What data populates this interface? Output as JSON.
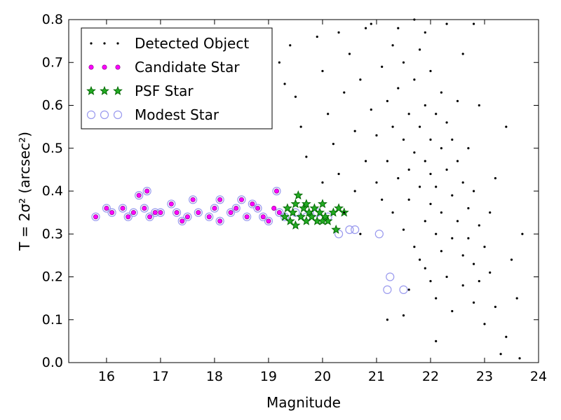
{
  "chart_data": {
    "type": "scatter",
    "title": "",
    "xlabel": "Magnitude",
    "ylabel": "T = 2σ² (arcsec²)",
    "xlim": [
      15.3,
      24.0
    ],
    "ylim": [
      0.0,
      0.8
    ],
    "xticks": [
      16,
      17,
      18,
      19,
      20,
      21,
      22,
      23,
      24
    ],
    "yticks": [
      0.0,
      0.1,
      0.2,
      0.3,
      0.4,
      0.5,
      0.6,
      0.7,
      0.8
    ],
    "grid": false,
    "legend_position": "top-left",
    "series": [
      {
        "name": "Detected Object",
        "marker": "dot",
        "color": "#000000",
        "points": [
          [
            19.2,
            0.7
          ],
          [
            19.5,
            0.62
          ],
          [
            19.6,
            0.55
          ],
          [
            19.7,
            0.48
          ],
          [
            19.9,
            0.76
          ],
          [
            20.0,
            0.68
          ],
          [
            20.1,
            0.58
          ],
          [
            20.2,
            0.51
          ],
          [
            20.3,
            0.44
          ],
          [
            20.4,
            0.63
          ],
          [
            20.5,
            0.72
          ],
          [
            20.6,
            0.54
          ],
          [
            20.6,
            0.4
          ],
          [
            20.7,
            0.66
          ],
          [
            20.8,
            0.47
          ],
          [
            20.8,
            0.78
          ],
          [
            20.9,
            0.59
          ],
          [
            21.0,
            0.42
          ],
          [
            21.0,
            0.53
          ],
          [
            21.1,
            0.69
          ],
          [
            21.1,
            0.38
          ],
          [
            21.2,
            0.61
          ],
          [
            21.2,
            0.47
          ],
          [
            21.3,
            0.74
          ],
          [
            21.3,
            0.55
          ],
          [
            21.3,
            0.35
          ],
          [
            21.4,
            0.64
          ],
          [
            21.4,
            0.43
          ],
          [
            21.5,
            0.52
          ],
          [
            21.5,
            0.7
          ],
          [
            21.5,
            0.31
          ],
          [
            21.6,
            0.58
          ],
          [
            21.6,
            0.45
          ],
          [
            21.6,
            0.38
          ],
          [
            21.7,
            0.66
          ],
          [
            21.7,
            0.49
          ],
          [
            21.7,
            0.27
          ],
          [
            21.8,
            0.55
          ],
          [
            21.8,
            0.41
          ],
          [
            21.8,
            0.73
          ],
          [
            21.9,
            0.6
          ],
          [
            21.9,
            0.47
          ],
          [
            21.9,
            0.33
          ],
          [
            21.9,
            0.22
          ],
          [
            22.0,
            0.52
          ],
          [
            22.0,
            0.44
          ],
          [
            22.0,
            0.68
          ],
          [
            22.0,
            0.37
          ],
          [
            22.1,
            0.58
          ],
          [
            22.1,
            0.3
          ],
          [
            22.1,
            0.41
          ],
          [
            22.1,
            0.15
          ],
          [
            22.2,
            0.5
          ],
          [
            22.2,
            0.63
          ],
          [
            22.2,
            0.35
          ],
          [
            22.2,
            0.26
          ],
          [
            22.3,
            0.45
          ],
          [
            22.3,
            0.56
          ],
          [
            22.3,
            0.2
          ],
          [
            22.4,
            0.39
          ],
          [
            22.4,
            0.52
          ],
          [
            22.4,
            0.29
          ],
          [
            22.4,
            0.12
          ],
          [
            22.5,
            0.47
          ],
          [
            22.5,
            0.33
          ],
          [
            22.5,
            0.61
          ],
          [
            22.6,
            0.42
          ],
          [
            22.6,
            0.25
          ],
          [
            22.6,
            0.18
          ],
          [
            22.7,
            0.36
          ],
          [
            22.7,
            0.5
          ],
          [
            22.7,
            0.29
          ],
          [
            22.8,
            0.23
          ],
          [
            22.8,
            0.4
          ],
          [
            22.8,
            0.14
          ],
          [
            22.9,
            0.32
          ],
          [
            22.9,
            0.19
          ],
          [
            23.0,
            0.27
          ],
          [
            23.0,
            0.09
          ],
          [
            23.1,
            0.35
          ],
          [
            23.1,
            0.21
          ],
          [
            23.2,
            0.13
          ],
          [
            23.3,
            0.02
          ],
          [
            23.4,
            0.06
          ],
          [
            23.5,
            0.24
          ],
          [
            23.6,
            0.15
          ],
          [
            23.65,
            0.01
          ],
          [
            23.7,
            0.3
          ],
          [
            21.2,
            0.1
          ],
          [
            21.5,
            0.11
          ],
          [
            22.1,
            0.05
          ],
          [
            20.9,
            0.79
          ],
          [
            20.4,
            0.35
          ],
          [
            20.0,
            0.42
          ],
          [
            20.7,
            0.3
          ],
          [
            21.9,
            0.77
          ],
          [
            22.6,
            0.72
          ],
          [
            22.9,
            0.6
          ],
          [
            23.2,
            0.43
          ],
          [
            23.4,
            0.55
          ],
          [
            21.4,
            0.78
          ],
          [
            22.3,
            0.79
          ],
          [
            21.7,
            0.8
          ],
          [
            22.8,
            0.79
          ],
          [
            19.4,
            0.74
          ],
          [
            19.3,
            0.65
          ],
          [
            20.3,
            0.77
          ],
          [
            21.8,
            0.24
          ],
          [
            22.0,
            0.19
          ],
          [
            21.6,
            0.17
          ]
        ]
      },
      {
        "name": "Candidate Star",
        "marker": "circle-small",
        "color": "#ff00ff",
        "points": [
          [
            15.8,
            0.34
          ],
          [
            16.0,
            0.36
          ],
          [
            16.1,
            0.35
          ],
          [
            16.3,
            0.36
          ],
          [
            16.4,
            0.34
          ],
          [
            16.5,
            0.35
          ],
          [
            16.6,
            0.39
          ],
          [
            16.7,
            0.36
          ],
          [
            16.75,
            0.4
          ],
          [
            16.8,
            0.34
          ],
          [
            16.9,
            0.35
          ],
          [
            17.0,
            0.35
          ],
          [
            17.2,
            0.37
          ],
          [
            17.3,
            0.35
          ],
          [
            17.4,
            0.33
          ],
          [
            17.5,
            0.34
          ],
          [
            17.6,
            0.38
          ],
          [
            17.7,
            0.35
          ],
          [
            17.9,
            0.34
          ],
          [
            18.0,
            0.36
          ],
          [
            18.1,
            0.38
          ],
          [
            18.1,
            0.33
          ],
          [
            18.3,
            0.35
          ],
          [
            18.4,
            0.36
          ],
          [
            18.5,
            0.38
          ],
          [
            18.6,
            0.34
          ],
          [
            18.7,
            0.37
          ],
          [
            18.8,
            0.36
          ],
          [
            18.9,
            0.34
          ],
          [
            19.0,
            0.33
          ],
          [
            19.15,
            0.4
          ],
          [
            19.2,
            0.35
          ],
          [
            19.1,
            0.36
          ]
        ]
      },
      {
        "name": "PSF Star",
        "marker": "star",
        "color": "#008000",
        "points": [
          [
            19.3,
            0.34
          ],
          [
            19.35,
            0.36
          ],
          [
            19.4,
            0.33
          ],
          [
            19.45,
            0.35
          ],
          [
            19.5,
            0.37
          ],
          [
            19.55,
            0.39
          ],
          [
            19.6,
            0.34
          ],
          [
            19.65,
            0.36
          ],
          [
            19.7,
            0.33
          ],
          [
            19.75,
            0.35
          ],
          [
            19.8,
            0.34
          ],
          [
            19.85,
            0.36
          ],
          [
            19.9,
            0.33
          ],
          [
            19.95,
            0.35
          ],
          [
            20.0,
            0.37
          ],
          [
            20.05,
            0.34
          ],
          [
            20.1,
            0.33
          ],
          [
            20.2,
            0.35
          ],
          [
            20.25,
            0.31
          ],
          [
            20.3,
            0.36
          ],
          [
            20.4,
            0.35
          ],
          [
            19.5,
            0.32
          ],
          [
            19.7,
            0.37
          ],
          [
            20.0,
            0.33
          ]
        ]
      },
      {
        "name": "Modest Star",
        "marker": "circle-large",
        "color": "#9999ee",
        "points": [
          [
            15.8,
            0.34
          ],
          [
            16.0,
            0.36
          ],
          [
            16.1,
            0.35
          ],
          [
            16.3,
            0.36
          ],
          [
            16.4,
            0.34
          ],
          [
            16.5,
            0.35
          ],
          [
            16.6,
            0.39
          ],
          [
            16.7,
            0.36
          ],
          [
            16.75,
            0.4
          ],
          [
            16.8,
            0.34
          ],
          [
            16.9,
            0.35
          ],
          [
            17.0,
            0.35
          ],
          [
            17.2,
            0.37
          ],
          [
            17.3,
            0.35
          ],
          [
            17.4,
            0.33
          ],
          [
            17.5,
            0.34
          ],
          [
            17.6,
            0.38
          ],
          [
            17.7,
            0.35
          ],
          [
            17.9,
            0.34
          ],
          [
            18.0,
            0.36
          ],
          [
            18.1,
            0.38
          ],
          [
            18.1,
            0.33
          ],
          [
            18.3,
            0.35
          ],
          [
            18.4,
            0.36
          ],
          [
            18.5,
            0.38
          ],
          [
            18.6,
            0.34
          ],
          [
            18.7,
            0.37
          ],
          [
            18.8,
            0.36
          ],
          [
            18.9,
            0.34
          ],
          [
            19.0,
            0.33
          ],
          [
            19.15,
            0.4
          ],
          [
            19.2,
            0.35
          ],
          [
            19.3,
            0.34
          ],
          [
            19.5,
            0.35
          ],
          [
            19.7,
            0.34
          ],
          [
            19.9,
            0.35
          ],
          [
            20.1,
            0.34
          ],
          [
            20.3,
            0.3
          ],
          [
            20.5,
            0.31
          ],
          [
            20.6,
            0.31
          ],
          [
            21.05,
            0.3
          ],
          [
            21.2,
            0.17
          ],
          [
            21.25,
            0.2
          ],
          [
            21.5,
            0.17
          ]
        ]
      }
    ]
  }
}
